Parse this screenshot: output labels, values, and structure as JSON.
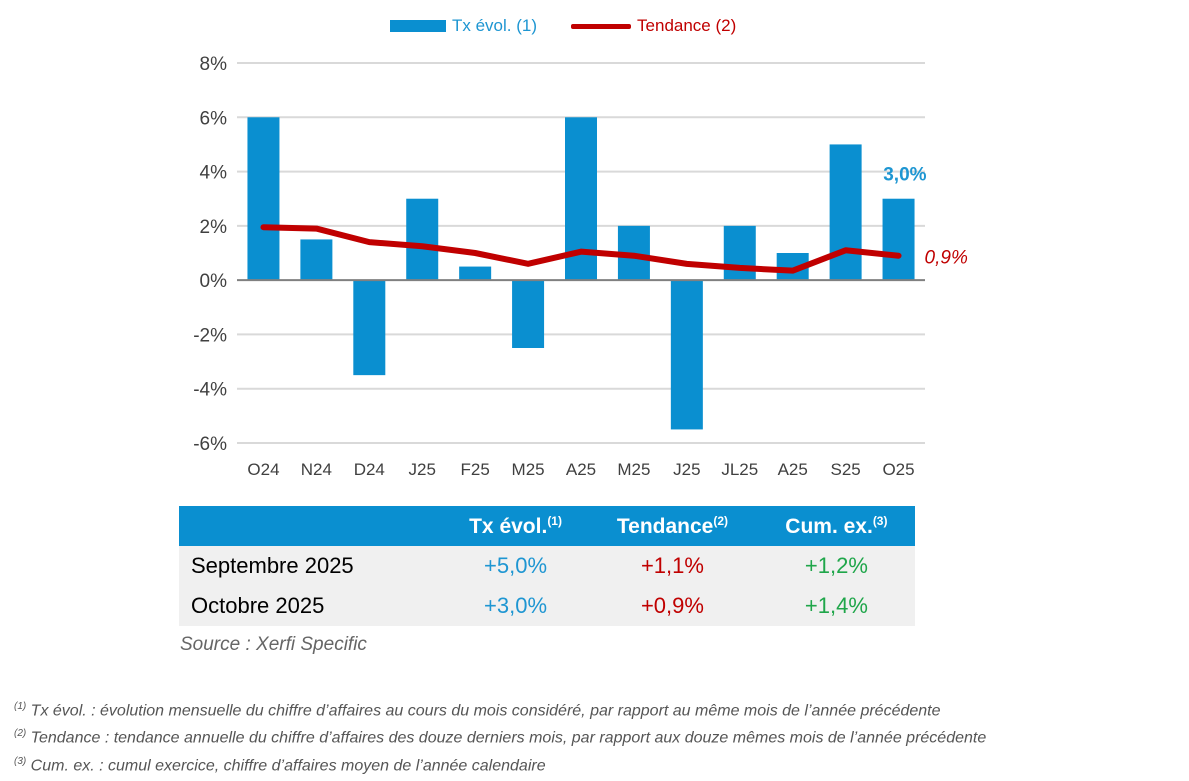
{
  "chart_data": {
    "type": "bar",
    "categories": [
      "O24",
      "N24",
      "D24",
      "J25",
      "F25",
      "M25",
      "A25",
      "M25",
      "J25",
      "JL25",
      "A25",
      "S25",
      "O25"
    ],
    "series": [
      {
        "name": "Tx évol. (1)",
        "type": "bar",
        "color": "#0a8fd0",
        "values": [
          6,
          1.5,
          -3.5,
          3,
          0.5,
          -2.5,
          6,
          2,
          -5.5,
          2,
          1,
          5,
          3
        ]
      },
      {
        "name": "Tendance (2)",
        "type": "line",
        "color": "#c00000",
        "values": [
          1.95,
          1.9,
          1.4,
          1.25,
          1.0,
          0.6,
          1.05,
          0.9,
          0.6,
          0.45,
          0.35,
          1.1,
          0.9
        ]
      }
    ],
    "ylim": [
      -6,
      8
    ],
    "yticks": [
      "-6%",
      "-4%",
      "-2%",
      "0%",
      "2%",
      "4%",
      "6%",
      "8%"
    ],
    "ytick_values": [
      -6,
      -4,
      -2,
      0,
      2,
      4,
      6,
      8
    ],
    "grid": true,
    "legend": "top",
    "annotations": {
      "bar_last": "3,0%",
      "line_last": "0,9%"
    }
  },
  "table": {
    "headers": [
      "",
      "Tx évol.",
      "Tendance",
      "Cum. ex."
    ],
    "header_sup": [
      "",
      "(1)",
      "(2)",
      "(3)"
    ],
    "rows": [
      [
        "Septembre 2025",
        "+5,0%",
        "+1,1%",
        "+1,2%"
      ],
      [
        "Octobre 2025",
        "+3,0%",
        "+0,9%",
        "+1,4%"
      ]
    ]
  },
  "source": "Source : Xerfi Specific",
  "notes": [
    {
      "sup": "(1)",
      "text": " Tx évol. : évolution mensuelle du chiffre d’affaires au cours du mois considéré, par rapport au même mois de l’année précédente"
    },
    {
      "sup": "(2)",
      "text": " Tendance : tendance annuelle du chiffre d’affaires des douze derniers mois, par rapport aux douze mêmes mois de l’année précédente"
    },
    {
      "sup": "(3)",
      "text": " Cum. ex. : cumul exercice, chiffre d’affaires moyen de l’année calendaire"
    }
  ]
}
